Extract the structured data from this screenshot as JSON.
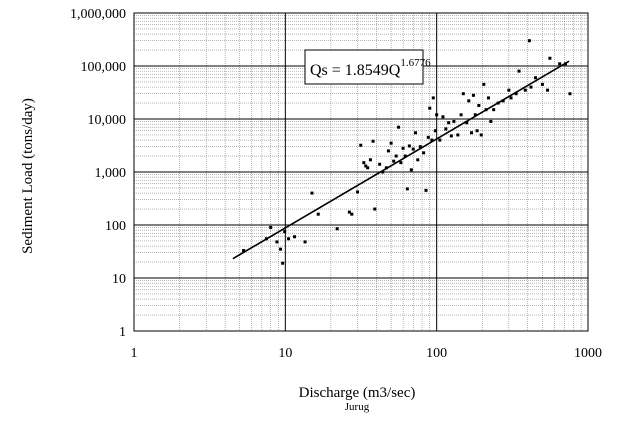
{
  "chart_data": {
    "type": "scatter",
    "xlabel": "Discharge (m3/sec)",
    "x_sublabel": "Jurug",
    "ylabel": "Sediment Load (tons/day)",
    "x_scale": "log",
    "y_scale": "log",
    "xlim": [
      1,
      1000
    ],
    "ylim": [
      1,
      1000000
    ],
    "x_ticks": [
      "1",
      "10",
      "100",
      "1000"
    ],
    "y_ticks": [
      "1",
      "10",
      "100",
      "1,000",
      "10,000",
      "100,000",
      "1,000,000"
    ],
    "grid": true,
    "equation": {
      "base": "Qs = 1.8549Q",
      "exponent": "1.6776"
    },
    "fit": {
      "coefficient": 1.8549,
      "exponent": 1.6776,
      "x_range": [
        4.5,
        750
      ]
    },
    "points": [
      [
        5.3,
        33
      ],
      [
        7.5,
        55
      ],
      [
        8.0,
        90
      ],
      [
        8.8,
        48
      ],
      [
        9.3,
        35
      ],
      [
        9.6,
        19
      ],
      [
        9.9,
        75
      ],
      [
        10.5,
        55
      ],
      [
        11.5,
        60
      ],
      [
        13.5,
        48
      ],
      [
        15.0,
        400
      ],
      [
        16.5,
        160
      ],
      [
        22.0,
        85
      ],
      [
        26.5,
        175
      ],
      [
        27.5,
        160
      ],
      [
        30.0,
        420
      ],
      [
        31.5,
        3200
      ],
      [
        33.0,
        1500
      ],
      [
        34.0,
        1300
      ],
      [
        35.0,
        1200
      ],
      [
        36.5,
        1700
      ],
      [
        38.0,
        3800
      ],
      [
        39.0,
        200
      ],
      [
        42.0,
        1400
      ],
      [
        44.0,
        1000
      ],
      [
        46.5,
        1200
      ],
      [
        48.0,
        2500
      ],
      [
        50.0,
        3500
      ],
      [
        52.0,
        1600
      ],
      [
        54.0,
        2000
      ],
      [
        56.0,
        7000
      ],
      [
        58.0,
        1500
      ],
      [
        60.0,
        2800
      ],
      [
        62.0,
        2000
      ],
      [
        64.0,
        480
      ],
      [
        66.0,
        3100
      ],
      [
        68.0,
        1100
      ],
      [
        70.0,
        2700
      ],
      [
        72.5,
        5500
      ],
      [
        75.0,
        1700
      ],
      [
        78.0,
        3000
      ],
      [
        82.0,
        2300
      ],
      [
        85.0,
        450
      ],
      [
        88.0,
        4500
      ],
      [
        90.0,
        16000
      ],
      [
        93.0,
        4000
      ],
      [
        95.0,
        25000
      ],
      [
        98.0,
        6000
      ],
      [
        100.0,
        12000
      ],
      [
        105.0,
        4000
      ],
      [
        110.0,
        11000
      ],
      [
        115.0,
        6500
      ],
      [
        120.0,
        8500
      ],
      [
        125.0,
        4800
      ],
      [
        130.0,
        9000
      ],
      [
        138.0,
        5000
      ],
      [
        145.0,
        12000
      ],
      [
        150.0,
        30000
      ],
      [
        158.0,
        8500
      ],
      [
        163.0,
        22000
      ],
      [
        170.0,
        5500
      ],
      [
        175.0,
        28000
      ],
      [
        180.0,
        12000
      ],
      [
        185.0,
        6000
      ],
      [
        190.0,
        18000
      ],
      [
        197.0,
        5000
      ],
      [
        205.0,
        45000
      ],
      [
        212.0,
        15000
      ],
      [
        220.0,
        25000
      ],
      [
        228.0,
        9000
      ],
      [
        238.0,
        15000
      ],
      [
        255.0,
        20000
      ],
      [
        275.0,
        22000
      ],
      [
        300.0,
        35000
      ],
      [
        310.0,
        25000
      ],
      [
        335.0,
        30000
      ],
      [
        350.0,
        80000
      ],
      [
        385.0,
        35000
      ],
      [
        410.0,
        300000
      ],
      [
        420.0,
        40000
      ],
      [
        450.0,
        60000
      ],
      [
        500.0,
        45000
      ],
      [
        540.0,
        35000
      ],
      [
        560.0,
        140000
      ],
      [
        650.0,
        110000
      ],
      [
        710.0,
        110000
      ],
      [
        760.0,
        30000
      ]
    ]
  }
}
